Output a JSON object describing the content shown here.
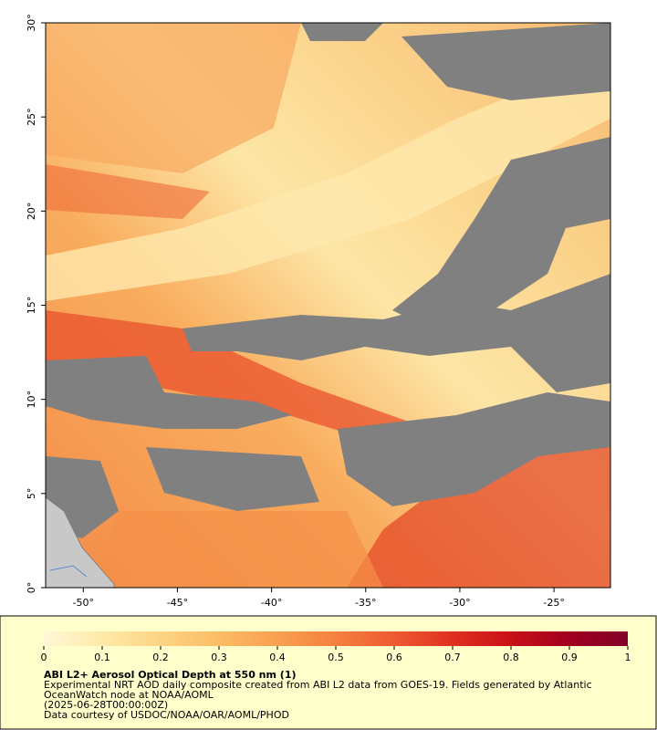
{
  "map": {
    "xlim": [
      -52,
      -22
    ],
    "ylim": [
      0,
      30
    ],
    "xticks": [
      {
        "value": -50,
        "label": "-50°"
      },
      {
        "value": -45,
        "label": "-45°"
      },
      {
        "value": -40,
        "label": "-40°"
      },
      {
        "value": -35,
        "label": "-35°"
      },
      {
        "value": -30,
        "label": "-30°"
      },
      {
        "value": -25,
        "label": "-25°"
      }
    ],
    "yticks": [
      {
        "value": 0,
        "label": "0°"
      },
      {
        "value": 5,
        "label": "5°"
      },
      {
        "value": 10,
        "label": "10°"
      },
      {
        "value": 15,
        "label": "15°"
      },
      {
        "value": 20,
        "label": "20°"
      },
      {
        "value": 25,
        "label": "25°"
      },
      {
        "value": 30,
        "label": "30°"
      }
    ]
  },
  "colorbar": {
    "lim": [
      0,
      1
    ],
    "ticks": [
      0,
      0.1,
      0.2,
      0.3,
      0.4,
      0.5,
      0.6,
      0.7,
      0.8,
      0.9,
      1
    ],
    "colors": [
      "#fff8d8",
      "#fee9a8",
      "#fdd484",
      "#fcbc64",
      "#f9a050",
      "#f58040",
      "#ee5a30",
      "#e03020",
      "#c81018",
      "#a00020",
      "#800028"
    ]
  },
  "legend": {
    "title": "ABI L2+ Aerosol Optical Depth at 550 nm (1)",
    "lines": [
      "Experimental NRT AOD daily composite created from ABI L2 data from GOES-19. Fields generated by Atlantic",
      "OceanWatch node at NOAA/AOML",
      "(2025-06-28T00:00:00Z)",
      "Data courtesy of USDOC/NOAA/OAR/AOML/PHOD"
    ]
  }
}
